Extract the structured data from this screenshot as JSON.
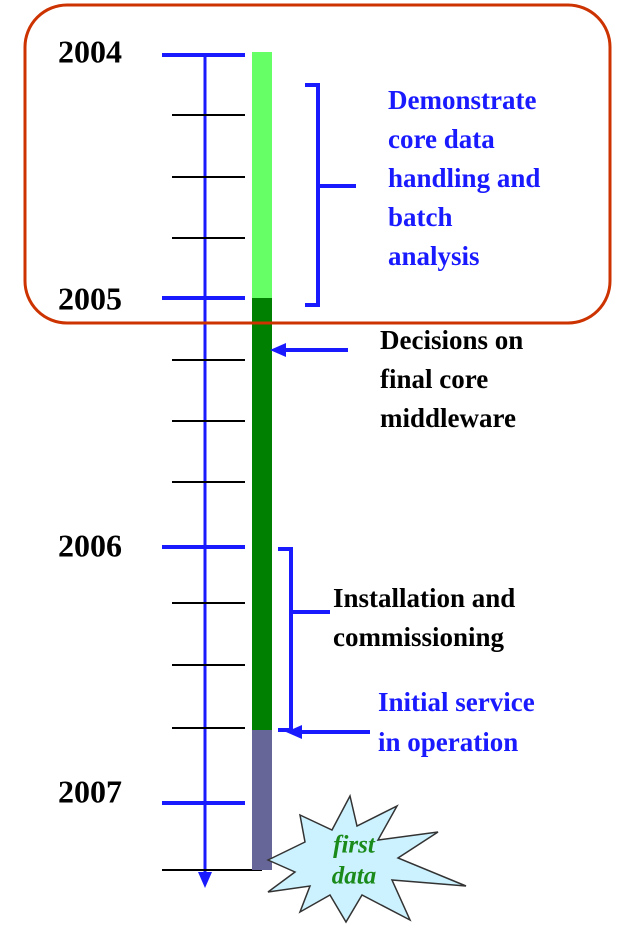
{
  "timeline": {
    "years": [
      "2004",
      "2005",
      "2006",
      "2007"
    ]
  },
  "annotations": [
    {
      "lines": [
        "Demonstrate",
        "core data",
        "handling and",
        "batch",
        "analysis"
      ]
    },
    {
      "lines": [
        "Decisions on",
        "final core",
        "middleware"
      ]
    },
    {
      "lines": [
        "Installation and",
        "commissioning"
      ]
    },
    {
      "lines": [
        "Initial service",
        "in operation"
      ]
    }
  ],
  "burst": {
    "lines": [
      "first",
      "data"
    ]
  }
}
